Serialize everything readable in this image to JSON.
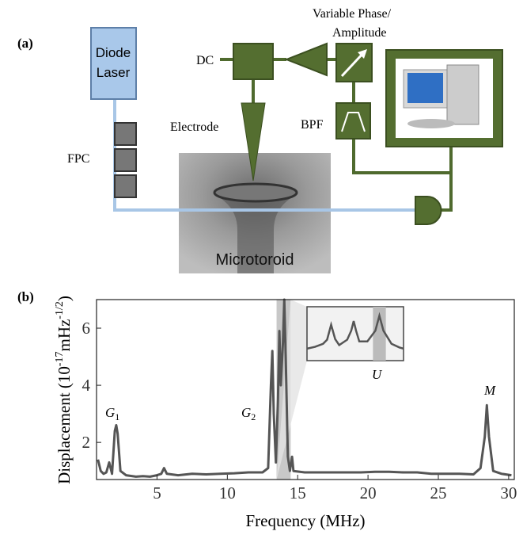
{
  "panel_a": {
    "label": "(a)",
    "laser": [
      "Diode",
      "Laser"
    ],
    "phase": [
      "Variable Phase/",
      "Amplitude"
    ],
    "dc": "DC",
    "electrode": "Electrode",
    "bpf": "BPF",
    "fpc": "FPC",
    "device": "Microtoroid"
  },
  "chart_data": {
    "type": "line",
    "panel_label": "(b)",
    "x_label": "Frequency (MHz)",
    "y_label": [
      "Displacement  (10",
      "-17",
      "mHz",
      "-1/2",
      ")"
    ],
    "x": [
      0.8,
      1.0,
      1.2,
      1.4,
      1.6,
      1.8,
      2.0,
      2.1,
      2.2,
      2.4,
      2.8,
      3.5,
      4.0,
      4.5,
      5.0,
      5.3,
      5.5,
      5.7,
      6.5,
      7.5,
      8.5,
      9.5,
      10.5,
      11.5,
      12.5,
      12.9,
      13.1,
      13.2,
      13.3,
      13.45,
      13.6,
      13.7,
      13.8,
      13.95,
      14.05,
      14.15,
      14.3,
      14.45,
      14.6,
      14.7,
      15.5,
      16.5,
      17.5,
      18.5,
      19.5,
      20.5,
      21.5,
      22.5,
      23.5,
      24.5,
      25.5,
      26.5,
      27.5,
      28.0,
      28.3,
      28.45,
      28.6,
      28.9,
      29.5,
      30.2
    ],
    "series": [
      {
        "color": "#555555",
        "values": [
          1.4,
          1.0,
          0.9,
          0.95,
          1.3,
          0.9,
          2.4,
          2.6,
          2.3,
          1.0,
          0.85,
          0.8,
          0.82,
          0.8,
          0.85,
          0.9,
          1.1,
          0.9,
          0.85,
          0.9,
          0.88,
          0.9,
          0.92,
          0.95,
          0.95,
          1.1,
          4.0,
          5.2,
          3.0,
          1.3,
          3.5,
          5.9,
          4.0,
          5.5,
          7.0,
          5.0,
          1.5,
          1.0,
          1.5,
          1.0,
          0.95,
          0.95,
          0.95,
          0.95,
          0.95,
          0.97,
          0.97,
          0.95,
          0.95,
          0.9,
          0.9,
          0.9,
          0.88,
          1.1,
          2.2,
          3.3,
          2.2,
          1.0,
          0.9,
          0.85
        ]
      }
    ],
    "xlim": [
      0.7,
      30.4
    ],
    "ylim": [
      0.7,
      7
    ],
    "xticks": [
      5,
      10,
      15,
      20,
      25,
      30
    ],
    "yticks": [
      2,
      4,
      6
    ],
    "highlight": [
      13.5,
      14.5
    ],
    "annotations": [
      {
        "text": "G",
        "sub": "1"
      },
      {
        "text": "G",
        "sub": "2"
      },
      {
        "text": "U"
      },
      {
        "text": "M"
      }
    ],
    "inset": {
      "x": [
        0,
        1,
        2,
        2.5,
        3,
        3.5,
        4,
        5,
        5.5,
        5.8,
        6.1,
        6.5,
        7.5,
        8.5,
        9,
        9.5,
        10.5,
        11.5,
        12
      ],
      "values": [
        2,
        2.3,
        2.8,
        3.5,
        6,
        3.6,
        2.6,
        3.5,
        5,
        6.6,
        5,
        3.2,
        3.2,
        5,
        7.5,
        5,
        2.8,
        2.2,
        2
      ],
      "xlim": [
        0,
        12
      ],
      "ylim": [
        0,
        9
      ],
      "highlight": [
        8.2,
        9.8
      ]
    }
  }
}
